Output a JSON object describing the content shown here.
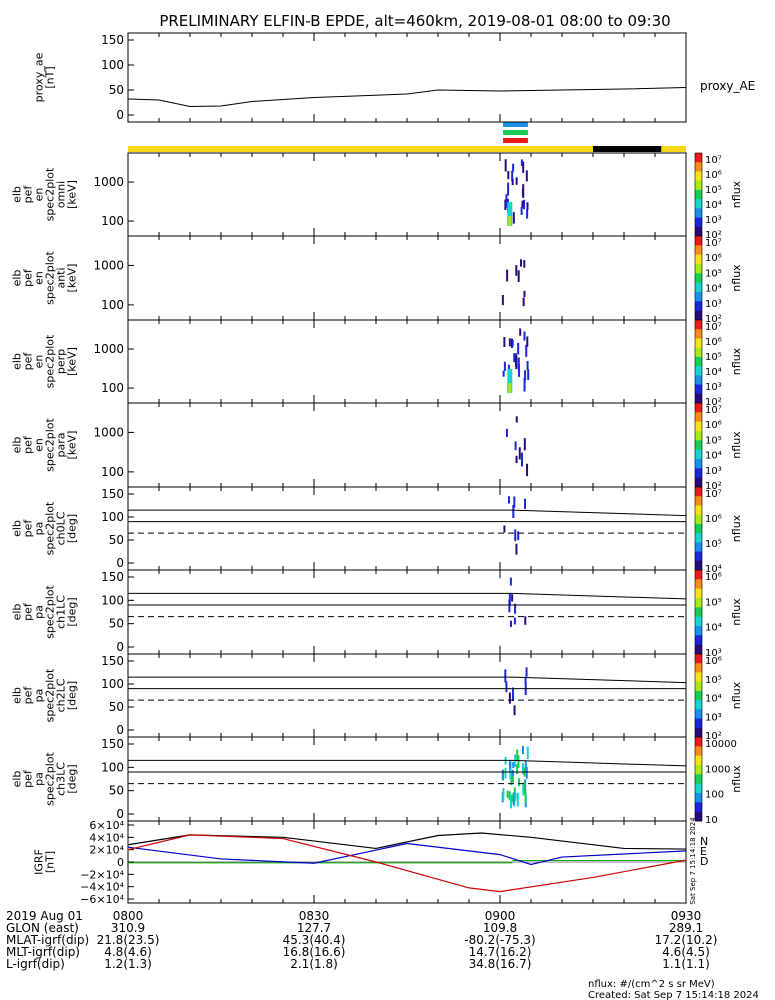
{
  "title": "PRELIMINARY ELFIN-B EPDE, alt=460km, 2019-08-01 08:00 to 09:30",
  "panels": [
    {
      "id": "proxy",
      "ylabel": [
        "proxy_ae",
        "[nT]"
      ],
      "ticks": [
        "150",
        "100",
        "50",
        "0"
      ],
      "legend": "proxy_AE"
    },
    {
      "id": "omni",
      "ylabel": [
        "elb",
        "pef",
        "en",
        "spec2plot",
        "omni",
        "[keV]"
      ],
      "ticks": [
        "1000",
        "100"
      ],
      "cbar_label": "nflux",
      "cbar_ticks": [
        "10⁷",
        "10⁶",
        "10⁵",
        "10⁴",
        "10³",
        "10²"
      ]
    },
    {
      "id": "anti",
      "ylabel": [
        "elb",
        "pef",
        "en",
        "spec2plot",
        "anti",
        "[keV]"
      ],
      "ticks": [
        "1000",
        "100"
      ],
      "cbar_label": "nflux",
      "cbar_ticks": [
        "10⁷",
        "10⁶",
        "10⁵",
        "10⁴",
        "10³",
        "10²"
      ]
    },
    {
      "id": "perp",
      "ylabel": [
        "elb",
        "pef",
        "en",
        "spec2plot",
        "perp",
        "[keV]"
      ],
      "ticks": [
        "1000",
        "100"
      ],
      "cbar_label": "nflux",
      "cbar_ticks": [
        "10⁷",
        "10⁶",
        "10⁵",
        "10⁴",
        "10³",
        "10²"
      ]
    },
    {
      "id": "para",
      "ylabel": [
        "elb",
        "pef",
        "en",
        "spec2plot",
        "para",
        "[keV]"
      ],
      "ticks": [
        "1000",
        "100"
      ],
      "cbar_label": "nflux",
      "cbar_ticks": [
        "10⁷",
        "10⁶",
        "10⁵",
        "10⁴",
        "10³",
        "10²"
      ]
    },
    {
      "id": "ch0",
      "ylabel": [
        "elb",
        "pef",
        "pa",
        "spec2plot",
        "ch0LC",
        "[deg]"
      ],
      "ticks": [
        "150",
        "100",
        "50",
        "0"
      ],
      "cbar_label": "nflux",
      "cbar_ticks": [
        "10⁷",
        "10⁶",
        "10⁵",
        "10⁴"
      ]
    },
    {
      "id": "ch1",
      "ylabel": [
        "elb",
        "pef",
        "pa",
        "spec2plot",
        "ch1LC",
        "[deg]"
      ],
      "ticks": [
        "150",
        "100",
        "50",
        "0"
      ],
      "cbar_label": "nflux",
      "cbar_ticks": [
        "10⁶",
        "10⁵",
        "10⁴",
        "10³"
      ]
    },
    {
      "id": "ch2",
      "ylabel": [
        "elb",
        "pef",
        "pa",
        "spec2plot",
        "ch2LC",
        "[deg]"
      ],
      "ticks": [
        "150",
        "100",
        "50",
        "0"
      ],
      "cbar_label": "nflux",
      "cbar_ticks": [
        "10⁶",
        "10⁵",
        "10⁴",
        "10³",
        "10²"
      ]
    },
    {
      "id": "ch3",
      "ylabel": [
        "elb",
        "pef",
        "pa",
        "spec2plot",
        "ch3LC",
        "[deg]"
      ],
      "ticks": [
        "150",
        "100",
        "50",
        "0"
      ],
      "cbar_label": "nflux",
      "cbar_ticks": [
        "10000",
        "1000",
        "100",
        "10"
      ]
    },
    {
      "id": "igrf",
      "ylabel": [
        "IGRF",
        "[nT]"
      ],
      "ticks": [
        "6×10⁴",
        "4×10⁴",
        "2×10⁴",
        "0",
        "−2×10⁴",
        "−4×10⁴",
        "−6×10⁴"
      ],
      "legend": [
        "N",
        "E",
        "D"
      ]
    }
  ],
  "created_vertical": "Sat Sep 7 15:14:18 2024",
  "footer": {
    "rows": [
      {
        "label": "2019 Aug 01",
        "values": [
          "0800",
          "0830",
          "0900",
          "0930"
        ]
      },
      {
        "label": "GLON (east)",
        "values": [
          "310.9",
          "127.7",
          "109.8",
          "289.1"
        ]
      },
      {
        "label": "MLAT-igrf(dip)",
        "values": [
          "21.8(23.5)",
          "45.3(40.4)",
          "-80.2(-75.3)",
          "17.2(10.2)"
        ]
      },
      {
        "label": "MLT-igrf(dip)",
        "values": [
          "4.8(4.6)",
          "16.8(16.6)",
          "14.7(16.2)",
          "4.6(4.5)"
        ]
      },
      {
        "label": "L-igrf(dip)",
        "values": [
          "1.2(1.3)",
          "2.1(1.8)",
          "34.8(16.7)",
          "1.1(1.1)"
        ]
      }
    ],
    "units": "nflux: #/(cm^2 s sr MeV)",
    "created": "Created: Sat Sep  7 15:14:18 2024"
  },
  "colors": {
    "N": "#000000",
    "E": "#0000cc",
    "D": "#cc0000",
    "extra": "#00aa00"
  },
  "chart_data": {
    "type": "line",
    "title": "PRELIMINARY ELFIN-B EPDE, alt=460km, 2019-08-01 08:00 to 09:30",
    "x_range": [
      "08:00",
      "09:30"
    ],
    "proxy_ae": {
      "x": [
        "08:00",
        "08:05",
        "08:10",
        "08:15",
        "08:20",
        "08:30",
        "08:45",
        "08:50",
        "09:00",
        "09:10",
        "09:20",
        "09:30"
      ],
      "values": [
        32,
        30,
        17,
        18,
        27,
        35,
        42,
        50,
        48,
        50,
        52,
        55
      ],
      "ylim": [
        0,
        150
      ]
    },
    "igrf": {
      "ylim": [
        -60000,
        60000
      ],
      "series": [
        {
          "name": "N",
          "x": [
            "08:00",
            "08:10",
            "08:25",
            "08:40",
            "08:50",
            "08:57",
            "09:05",
            "09:20",
            "09:30"
          ],
          "values": [
            28000,
            44000,
            40000,
            22000,
            43000,
            47000,
            40000,
            22000,
            21000
          ]
        },
        {
          "name": "E",
          "x": [
            "08:00",
            "08:15",
            "08:30",
            "08:45",
            "09:00",
            "09:05",
            "09:10",
            "09:30"
          ],
          "values": [
            24000,
            5000,
            -2000,
            30000,
            12000,
            -4000,
            8000,
            18000
          ]
        },
        {
          "name": "D",
          "x": [
            "08:00",
            "08:10",
            "08:25",
            "08:40",
            "08:55",
            "09:00",
            "09:15",
            "09:30"
          ],
          "values": [
            20000,
            44000,
            38000,
            0,
            -42000,
            -48000,
            -25000,
            3000
          ]
        }
      ]
    },
    "pa_reference_deg": [
      115,
      90,
      65
    ]
  }
}
